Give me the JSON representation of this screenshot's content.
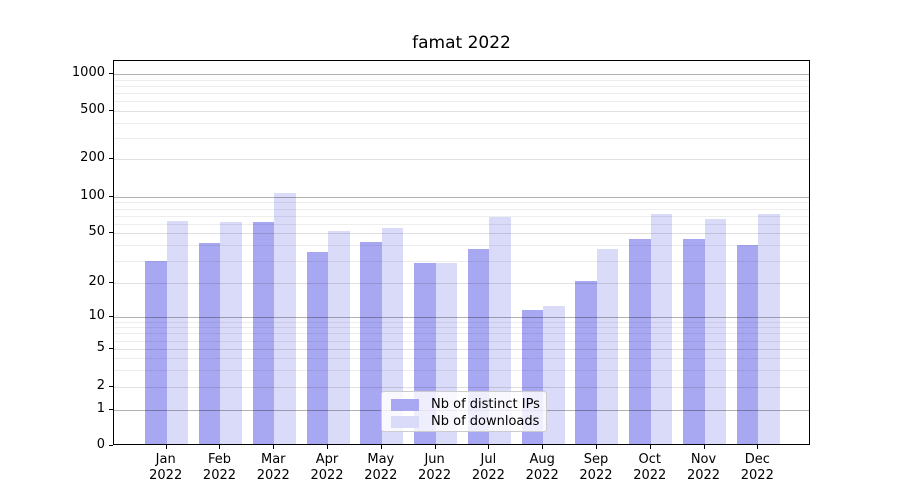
{
  "title": "famat 2022",
  "chart_data": {
    "type": "bar",
    "title": "famat 2022",
    "x_months": [
      "Jan",
      "Feb",
      "Mar",
      "Apr",
      "May",
      "Jun",
      "Jul",
      "Aug",
      "Sep",
      "Oct",
      "Nov",
      "Dec"
    ],
    "x_year": "2022",
    "categories": [
      "Jan 2022",
      "Feb 2022",
      "Mar 2022",
      "Apr 2022",
      "May 2022",
      "Jun 2022",
      "Jul 2022",
      "Aug 2022",
      "Sep 2022",
      "Oct 2022",
      "Nov 2022",
      "Dec 2022"
    ],
    "series": [
      {
        "name": "Nb of distinct IPs",
        "color": "#a8a8f2",
        "values": [
          29,
          40,
          60,
          34,
          41,
          28,
          36,
          11,
          20,
          43,
          43,
          39
        ]
      },
      {
        "name": "Nb of downloads",
        "color": "#dadaf9",
        "values": [
          61,
          60,
          103,
          50,
          53,
          28,
          66,
          12,
          36,
          70,
          63,
          70
        ]
      }
    ],
    "yscale": "symlog",
    "ylim": [
      0,
      1000
    ],
    "yticks": [
      0,
      1,
      2,
      5,
      10,
      20,
      50,
      100,
      200,
      500,
      1000
    ],
    "grid": true,
    "legend_position": "lower center",
    "grid_colors": {
      "major": "rgba(0,0,0,0.30)",
      "labeled_minor": "rgba(0,0,0,0.12)",
      "minor": "rgba(0,0,0,0.07)"
    }
  }
}
